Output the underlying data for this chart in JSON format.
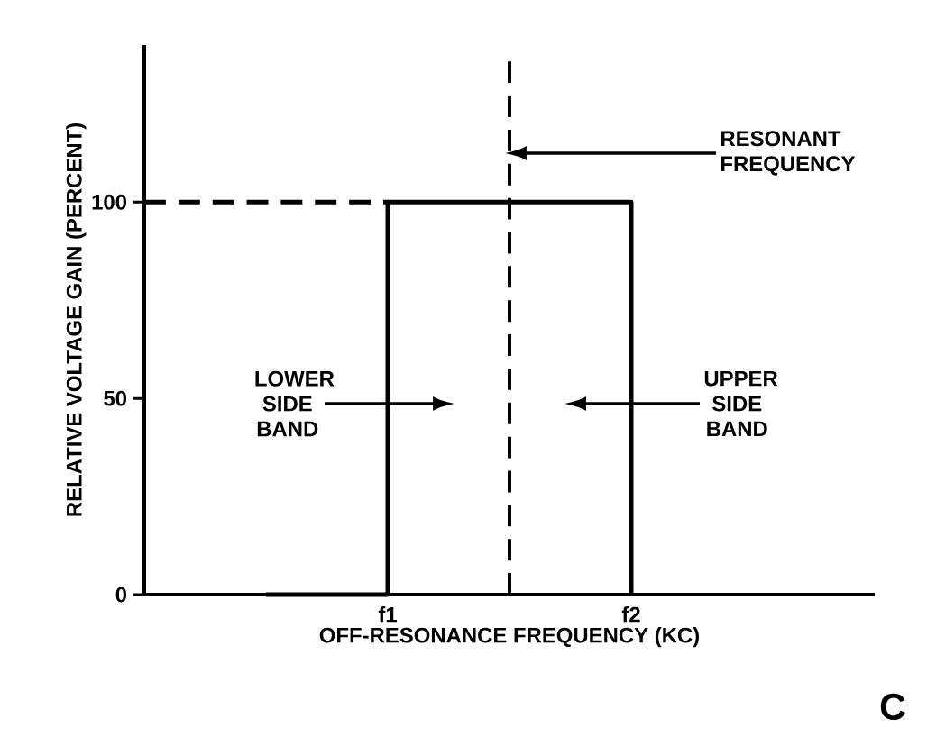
{
  "chart_data": {
    "type": "step",
    "xlabel": "OFF-RESONANCE  FREQUENCY  (KC)",
    "ylabel": "RELATIVE VOLTAGE GAIN (PERCENT)",
    "categories": [
      null,
      null,
      "f1",
      null,
      "f2",
      null,
      null
    ],
    "ylim": [
      0,
      140
    ],
    "yticks": [
      0,
      50,
      100
    ],
    "series": [
      {
        "color": "#000000",
        "values": [
          null,
          0,
          100,
          100,
          0,
          null,
          null
        ],
        "line_style": "solid"
      },
      {
        "color": "#000000",
        "type": "line",
        "values": [
          100,
          100,
          100,
          null,
          null,
          null,
          null
        ],
        "line_style": "dashed"
      }
    ],
    "annotations": [
      "RESONANT FREQUENCY",
      "LOWER SIDE BAND",
      "UPPER SIDE BAND",
      "C"
    ],
    "grid": false,
    "marker": "none"
  }
}
